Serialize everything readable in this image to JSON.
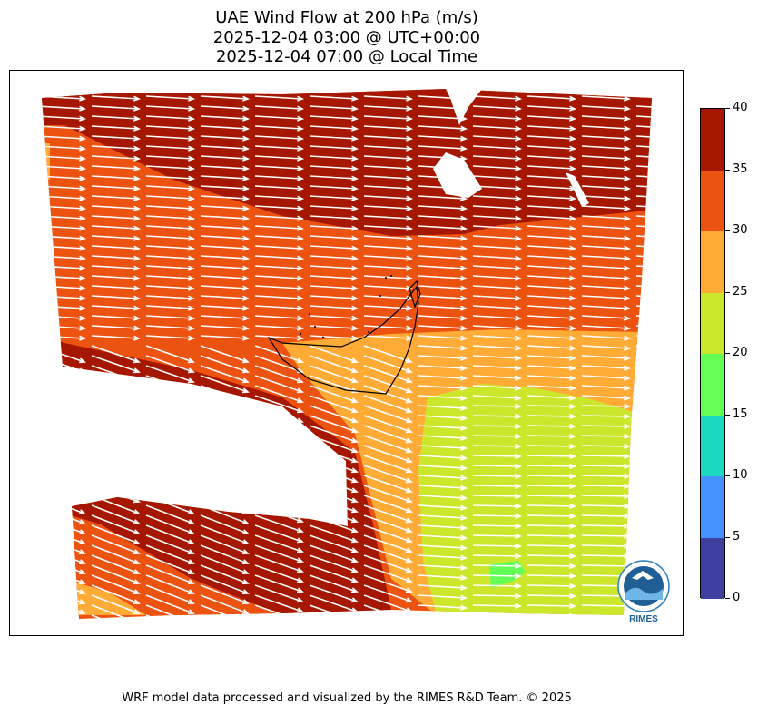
{
  "title": {
    "line1": "UAE Wind Flow at 200 hPa (m/s)",
    "line2": "2025-12-04 03:00 @ UTC+00:00",
    "line3": "2025-12-04 07:00 @ Local Time"
  },
  "colorbar": {
    "ticks": [
      "0",
      "5",
      "10",
      "15",
      "20",
      "25",
      "30",
      "35",
      "40"
    ],
    "colors": [
      "#3f3f9f",
      "#4592ff",
      "#19d9c1",
      "#63ff55",
      "#cce62c",
      "#ffab36",
      "#ec5210",
      "#a51700"
    ]
  },
  "logo": {
    "text": "RIMES"
  },
  "footer": {
    "credit": "WRF model data processed and visualized by the RIMES R&D Team. © 2025"
  },
  "colors": {
    "arrow": "#ffffff",
    "border_line": "#000000"
  }
}
